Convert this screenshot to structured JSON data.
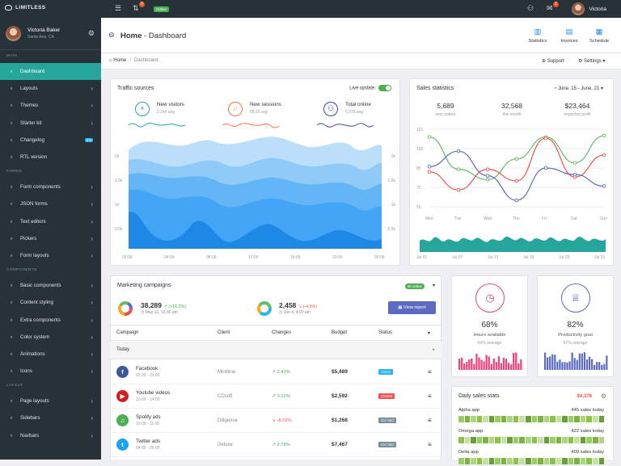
{
  "topbar": {
    "brand": "LIMITLESS",
    "notif_count": "9",
    "online_label": "Online",
    "msg_count": "2",
    "user_name": "Victoria"
  },
  "sidebar": {
    "user": {
      "name": "Victoria Baker",
      "location": "Santa Ana, CA"
    },
    "sections": {
      "main": "MAIN",
      "forms": "FORMS",
      "components": "COMPONENTS",
      "layout": "LAYOUT"
    },
    "main_items": [
      {
        "label": "Dashboard",
        "icon": "home-icon"
      },
      {
        "label": "Layouts",
        "icon": "layout-icon"
      },
      {
        "label": "Themes",
        "icon": "themes-icon"
      },
      {
        "label": "Starter kit",
        "icon": "stack-icon"
      },
      {
        "label": "Changelog",
        "icon": "list-icon",
        "tag": "2.0"
      },
      {
        "label": "RTL version",
        "icon": "rtl-icon"
      }
    ],
    "form_items": [
      {
        "label": "Form components",
        "icon": "pencil-icon"
      },
      {
        "label": "JSON forms",
        "icon": "file-icon"
      },
      {
        "label": "Text editors",
        "icon": "edit-icon"
      },
      {
        "label": "Pickers",
        "icon": "picker-icon"
      },
      {
        "label": "Form layouts",
        "icon": "form-layout-icon"
      }
    ],
    "component_items": [
      {
        "label": "Basic components",
        "icon": "grid-icon"
      },
      {
        "label": "Content styling",
        "icon": "brush-icon"
      },
      {
        "label": "Extra components",
        "icon": "puzzle-icon"
      },
      {
        "label": "Color system",
        "icon": "color-icon"
      },
      {
        "label": "Animations",
        "icon": "animation-icon"
      },
      {
        "label": "Icons",
        "icon": "star-icon"
      }
    ],
    "layout_items": [
      {
        "label": "Page layouts",
        "icon": "page-layout-icon"
      },
      {
        "label": "Sidebars",
        "icon": "sidebar-icon"
      },
      {
        "label": "Navbars",
        "icon": "navbar-icon"
      }
    ]
  },
  "header": {
    "title_home": "Home",
    "title_page": "Dashboard",
    "actions": [
      "Statistics",
      "Invoices",
      "Schedule"
    ],
    "breadcrumb": {
      "home": "Home",
      "current": "Dashboard"
    },
    "right_links": [
      "Support",
      "Settings"
    ]
  },
  "traffic": {
    "title": "Traffic sources",
    "live_label": "Live update:",
    "stats": [
      {
        "label": "New visitors",
        "sub": "2,349 avg",
        "icon": "+",
        "color": "#26a69a"
      },
      {
        "label": "New sessions",
        "sub": "08:20 avg",
        "icon": "○",
        "color": "#ff7043"
      },
      {
        "label": "Total online",
        "sub": "5,378 avg",
        "icon": "⚇",
        "color": "#3949ab"
      }
    ],
    "y_ticks": [
      "2k",
      "1.5k",
      "1k",
      "0.5k"
    ],
    "x_ticks": [
      "00:00",
      "04:00",
      "08:00",
      "12:00",
      "16:00",
      "20:00",
      "00:00"
    ]
  },
  "sales": {
    "title": "Sales statistics",
    "range": "June, 15 - June, 21",
    "stats": [
      {
        "value": "5,689",
        "label": "new orders"
      },
      {
        "value": "32,568",
        "label": "this month"
      },
      {
        "value": "$23,464",
        "label": "expected profit"
      }
    ]
  },
  "chart_data": [
    {
      "type": "line",
      "categories": [
        "Mon",
        "Tue",
        "Wed",
        "Thu",
        "Fri",
        "Sat",
        "Sun"
      ],
      "y_ticks": [
        115,
        100,
        85,
        70,
        55
      ],
      "ylim": [
        55,
        115
      ],
      "series": [
        {
          "color": "#66bb6a",
          "values": [
            109,
            84,
            76,
            92,
            109,
            89,
            110
          ]
        },
        {
          "color": "#ef5350",
          "values": [
            82,
            68,
            84,
            75,
            108,
            78,
            95
          ]
        },
        {
          "color": "#5c6bc0",
          "values": [
            86,
            98,
            79,
            60,
            85,
            80,
            71
          ]
        }
      ],
      "x2_ticks": [
        "Jul 01",
        "Jul 07",
        "Jul 13",
        "Jul 19",
        "Jul 25",
        "Jul 31"
      ]
    }
  ],
  "marketing": {
    "title": "Marketing campaigns",
    "online_tag": "28 online",
    "kpi1": {
      "value": "38,289",
      "pct": "(+16.2%)",
      "date": "May 12, 12:30 am"
    },
    "kpi2": {
      "value": "2,458",
      "pct": "(-4.9%)",
      "date": "Jun 4, 4:00 am"
    },
    "view_btn": "View report",
    "columns": [
      "Campaign",
      "Client",
      "Changes",
      "Budget",
      "Status"
    ],
    "group": "Today",
    "rows": [
      {
        "name": "Facebook",
        "time": "02:00 - 03:00",
        "client": "Mintlime",
        "change": "2.43%",
        "up": true,
        "budget": "$5,489",
        "status": "Active",
        "status_color": "#29b6f6",
        "icon": "f",
        "icon_color": "#3b5998"
      },
      {
        "name": "Youtube videos",
        "time": "13:00 - 14:00",
        "client": "CDsoft",
        "change": "3.12%",
        "up": true,
        "budget": "$2,592",
        "status": "Closed",
        "status_color": "#ef5350",
        "icon": "▶",
        "icon_color": "#cd201f"
      },
      {
        "name": "Spotify ads",
        "time": "10:00 - 11:00",
        "client": "Diligence",
        "change": "-8.02%",
        "up": false,
        "budget": "$1,268",
        "status": "On hold",
        "status_color": "#78909c",
        "icon": "♫",
        "icon_color": "#4caf50"
      },
      {
        "name": "Twitter ads",
        "time": "04:00 - 05:00",
        "client": "Deluxe",
        "change": "2.78%",
        "up": true,
        "budget": "$7,467",
        "status": "On hold",
        "status_color": "#78909c",
        "icon": "t",
        "icon_color": "#1da1f2"
      }
    ]
  },
  "hours": {
    "pct": "68%",
    "label": "Hours available",
    "sub": "64% average",
    "color": "#ec407a"
  },
  "productivity": {
    "pct": "82%",
    "label": "Productivity goal",
    "sub": "87% average",
    "color": "#5c6bc0"
  },
  "daily": {
    "title": "Daily sales stats",
    "amount": "$4,378",
    "rows": [
      {
        "name": "Alpha app",
        "value": "445 sales today"
      },
      {
        "name": "Omega app",
        "value": "422 sales today"
      },
      {
        "name": "Delta app",
        "value": "409 sales today"
      }
    ]
  }
}
